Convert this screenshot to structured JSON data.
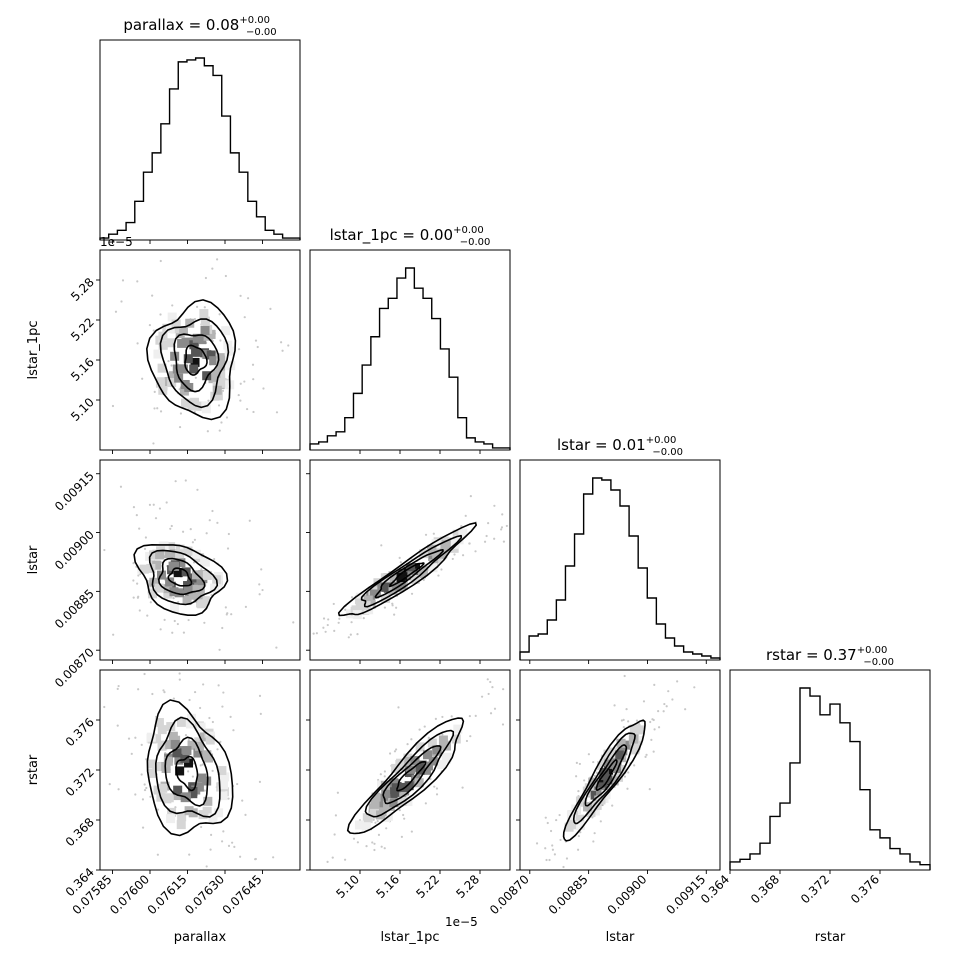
{
  "chart_data": {
    "type": "corner",
    "parameters": [
      {
        "key": "parallax",
        "label": "parallax",
        "title_main": "parallax = 0.08",
        "title_sup": "+0.00",
        "title_sub": "−0.00",
        "range": [
          0.0758,
          0.0766
        ],
        "ticks": [
          0.07585,
          0.076,
          0.07615,
          0.0763,
          0.07645
        ],
        "tick_labels": [
          "0.07585",
          "0.07600",
          "0.07615",
          "0.07630",
          "0.07645"
        ],
        "offset_label": ""
      },
      {
        "key": "lstar_1pc",
        "label": "lstar_1pc",
        "title_main": "lstar_1pc = 0.00",
        "title_sup": "+0.00",
        "title_sub": "−0.00",
        "range": [
          5.025,
          5.325
        ],
        "ticks": [
          5.1,
          5.16,
          5.22,
          5.28
        ],
        "tick_labels": [
          "5.10",
          "5.16",
          "5.22",
          "5.28"
        ],
        "offset_label": "1e−5"
      },
      {
        "key": "lstar",
        "label": "lstar",
        "title_main": "lstar = 0.01",
        "title_sup": "+0.00",
        "title_sub": "−0.00",
        "range": [
          0.008675,
          0.009185
        ],
        "ticks": [
          0.0087,
          0.00885,
          0.009,
          0.00915
        ],
        "tick_labels": [
          "0.00870",
          "0.00885",
          "0.00900",
          "0.00915"
        ],
        "offset_label": ""
      },
      {
        "key": "rstar",
        "label": "rstar",
        "title_main": "rstar = 0.37",
        "title_sup": "+0.00",
        "title_sub": "−0.00",
        "range": [
          0.364,
          0.38
        ],
        "ticks": [
          0.364,
          0.368,
          0.372,
          0.376
        ],
        "tick_labels": [
          "0.364",
          "0.368",
          "0.372",
          "0.376"
        ],
        "offset_label": ""
      }
    ],
    "y_tick_labels": {
      "lstar_1pc": [
        "5.10",
        "5.16",
        "5.22",
        "5.28"
      ],
      "lstar": [
        "0.00870",
        "0.00885",
        "0.00900",
        "0.00915"
      ],
      "rstar": [
        "0.364",
        "0.368",
        "0.372",
        "0.376"
      ]
    },
    "histograms": [
      {
        "param": "parallax",
        "counts": [
          1,
          3,
          5,
          9,
          20,
          35,
          45,
          60,
          78,
          92,
          93,
          94,
          90,
          85,
          64,
          45,
          35,
          20,
          12,
          5,
          3,
          1,
          1
        ]
      },
      {
        "param": "lstar_1pc",
        "counts": [
          3,
          4,
          7,
          9,
          16,
          28,
          42,
          56,
          70,
          75,
          85,
          90,
          80,
          75,
          65,
          50,
          36,
          16,
          6,
          4,
          3,
          1,
          1
        ]
      },
      {
        "param": "lstar",
        "counts": [
          4,
          12,
          13,
          20,
          30,
          47,
          63,
          83,
          91,
          90,
          85,
          77,
          62,
          46,
          31,
          18,
          11,
          7,
          4,
          3,
          2,
          1
        ]
      },
      {
        "param": "rstar",
        "counts": [
          3,
          4,
          6,
          10,
          20,
          25,
          40,
          68,
          65,
          58,
          62,
          55,
          48,
          30,
          15,
          12,
          8,
          6,
          3,
          2
        ]
      }
    ],
    "pairs": [
      {
        "x": "parallax",
        "y": "lstar_1pc",
        "center": [
          0.07618,
          5.16
        ],
        "sd": [
          8.5e-05,
          0.042
        ],
        "rho": 0.0
      },
      {
        "x": "parallax",
        "y": "lstar",
        "center": [
          0.07612,
          0.008885
        ],
        "sd": [
          8.5e-05,
          4.5e-05
        ],
        "rho": -0.25
      },
      {
        "x": "parallax",
        "y": "rstar",
        "center": [
          0.07615,
          0.3718
        ],
        "sd": [
          8.5e-05,
          0.0025
        ],
        "rho": -0.2
      },
      {
        "x": "lstar_1pc",
        "y": "lstar",
        "center": [
          5.17,
          0.008895
        ],
        "sd": [
          0.048,
          5.8e-05
        ],
        "rho": 0.95
      },
      {
        "x": "lstar_1pc",
        "y": "rstar",
        "center": [
          5.175,
          0.3715
        ],
        "sd": [
          0.042,
          0.0023
        ],
        "rho": 0.9
      },
      {
        "x": "lstar",
        "y": "rstar",
        "center": [
          0.008895,
          0.3715
        ],
        "sd": [
          5.2e-05,
          0.0024
        ],
        "rho": 0.93
      }
    ],
    "levels_sigma": [
      0.5,
      1.0,
      1.5,
      2.0
    ]
  }
}
